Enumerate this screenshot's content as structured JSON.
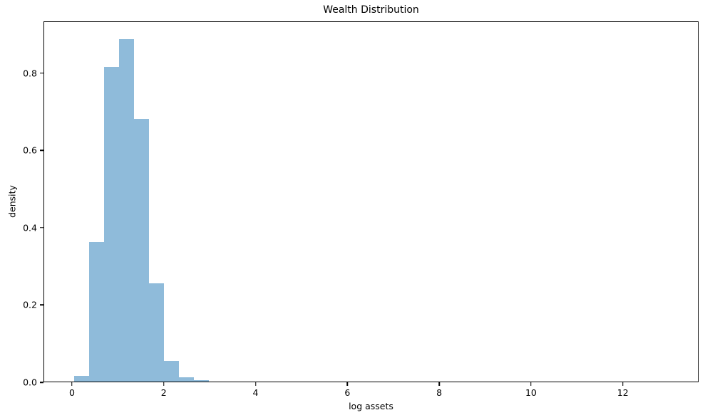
{
  "chart_data": {
    "type": "bar",
    "subtype": "histogram",
    "title": "Wealth Distribution",
    "xlabel": "log assets",
    "ylabel": "density",
    "bar_color": "#8fbbda",
    "axis_color": "#000000",
    "background_color": "#ffffff",
    "grid": false,
    "legend": null,
    "xlim": [
      -0.62,
      13.65
    ],
    "ylim": [
      0,
      0.934
    ],
    "xticks": {
      "values": [
        0,
        2,
        4,
        6,
        8,
        10,
        12
      ],
      "labels": [
        "0",
        "2",
        "4",
        "6",
        "8",
        "10",
        "12"
      ]
    },
    "yticks": {
      "values": [
        0.0,
        0.2,
        0.4,
        0.6,
        0.8
      ],
      "labels": [
        "0.0",
        "0.2",
        "0.4",
        "0.6",
        "0.8"
      ]
    },
    "bars": [
      {
        "x0": 0.04,
        "x1": 0.366,
        "density": 0.014
      },
      {
        "x0": 0.366,
        "x1": 0.692,
        "density": 0.363
      },
      {
        "x0": 0.692,
        "x1": 1.018,
        "density": 0.817
      },
      {
        "x0": 1.018,
        "x1": 1.344,
        "density": 0.89
      },
      {
        "x0": 1.344,
        "x1": 1.67,
        "density": 0.683
      },
      {
        "x0": 1.67,
        "x1": 1.996,
        "density": 0.256
      },
      {
        "x0": 1.996,
        "x1": 2.322,
        "density": 0.054
      },
      {
        "x0": 2.322,
        "x1": 2.648,
        "density": 0.012
      },
      {
        "x0": 2.648,
        "x1": 2.974,
        "density": 0.003
      }
    ]
  }
}
